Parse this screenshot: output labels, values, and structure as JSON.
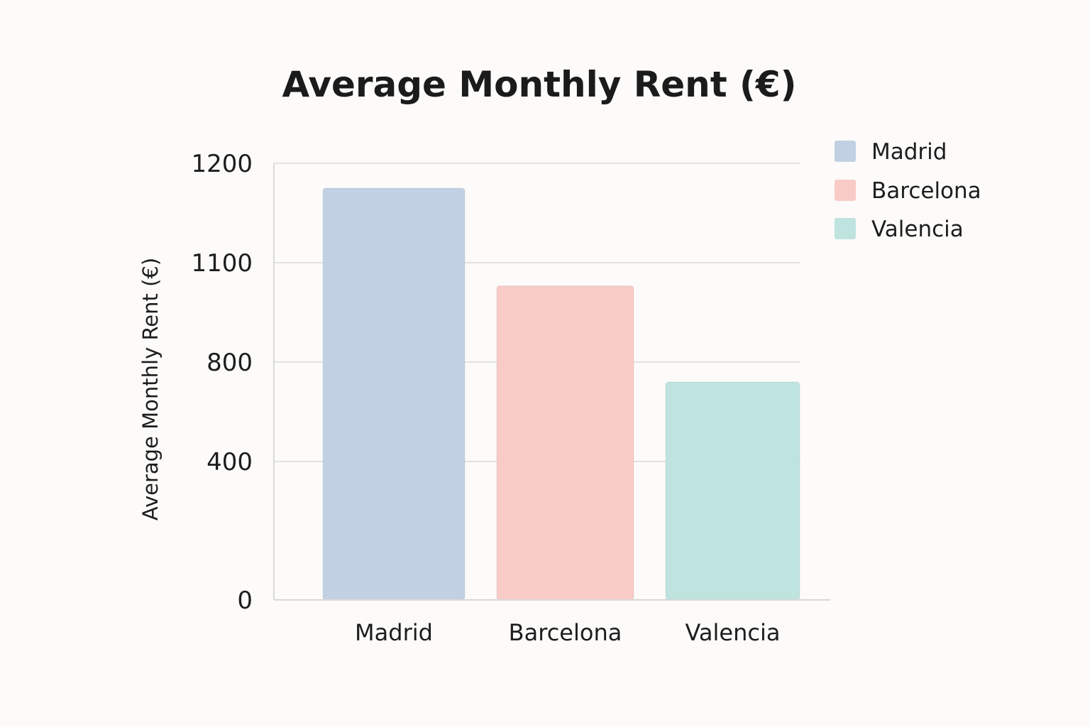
{
  "chart_data": {
    "type": "bar",
    "title": "Average Monthly Rent (€)",
    "xlabel": "",
    "ylabel": "Average Monthly Rent (€)",
    "categories": [
      "Madrid",
      "Barcelona",
      "Valencia"
    ],
    "values": [
      1175,
      1030,
      720
    ],
    "colors": [
      "#c2d0e3",
      "#f8cbc7",
      "#bfe3de"
    ],
    "yticks": [
      0,
      400,
      800,
      1100,
      1200
    ],
    "grid": true,
    "legend": {
      "position": "top-right",
      "entries": [
        "Madrid",
        "Barcelona",
        "Valencia"
      ]
    }
  }
}
